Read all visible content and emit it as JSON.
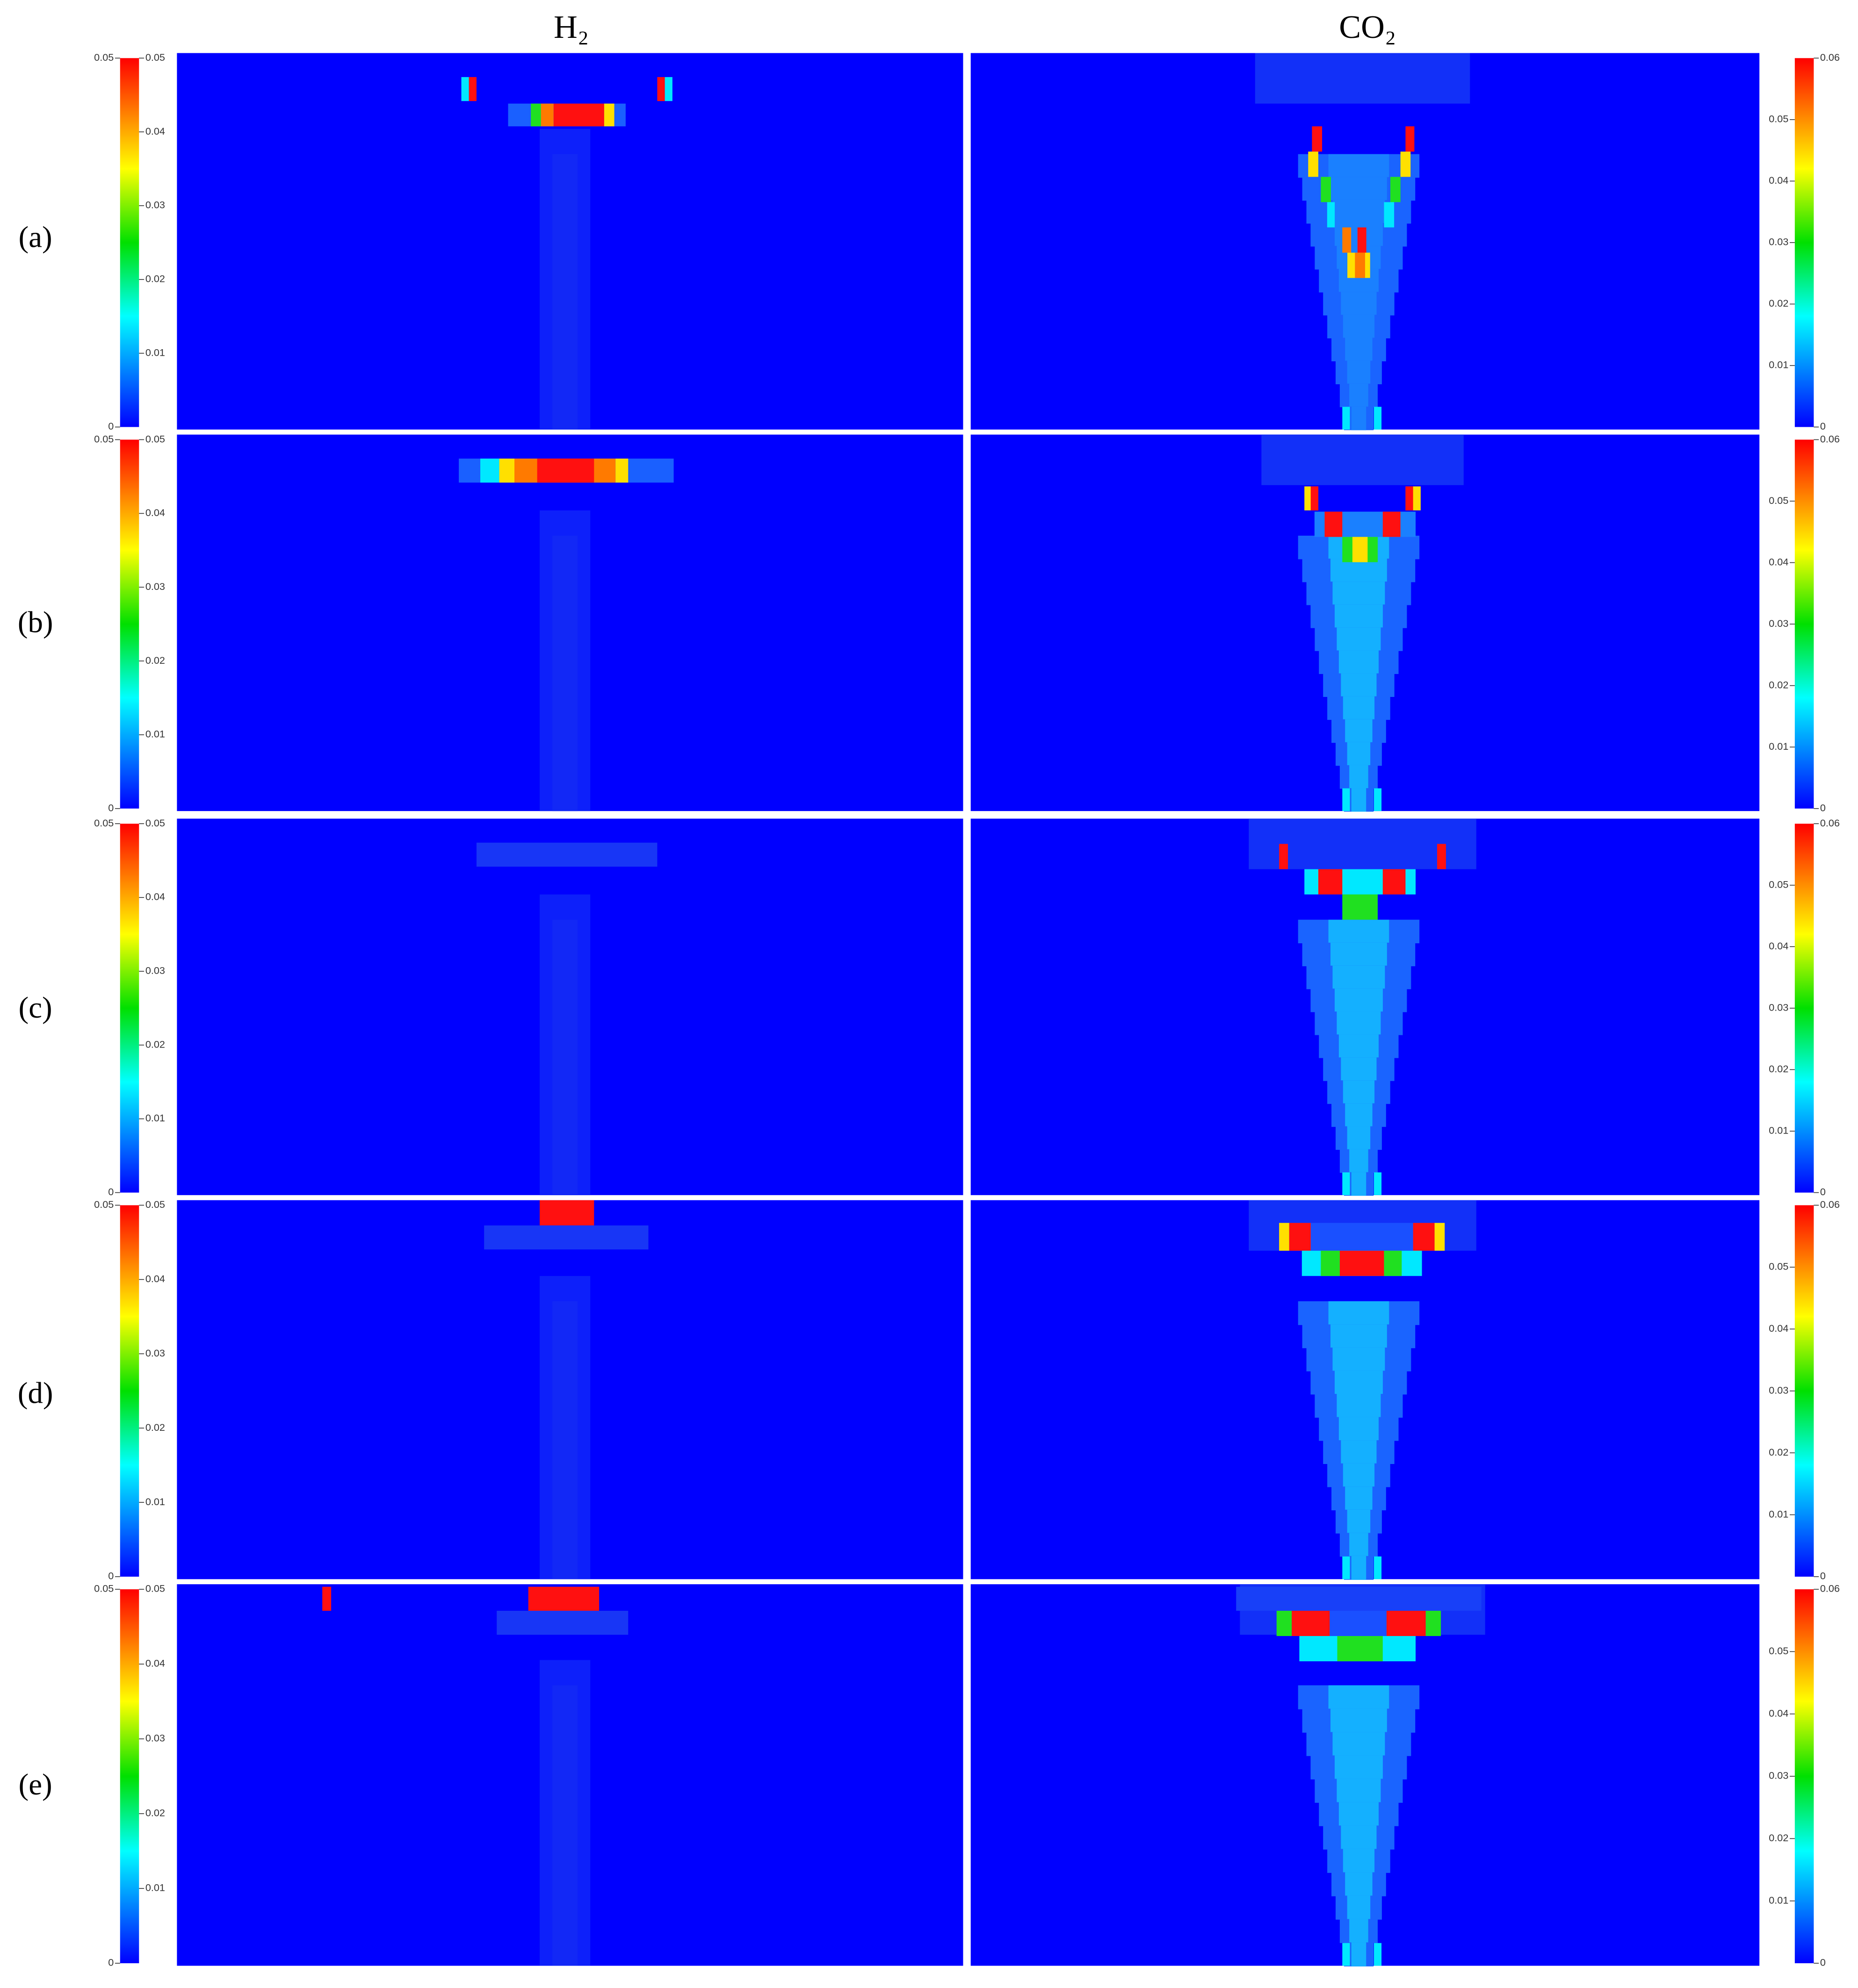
{
  "column_titles": [
    "H₂",
    "CO₂"
  ],
  "row_labels": [
    "(a)",
    "(b)",
    "(c)",
    "(d)",
    "(e)"
  ],
  "colorbars": [
    {
      "range": [
        0,
        0.05
      ],
      "ticks": [
        0.01,
        0.02,
        0.03,
        0.04,
        0.05
      ]
    },
    {
      "range": [
        0,
        0.06
      ],
      "ticks": [
        0.01,
        0.02,
        0.03,
        0.04,
        0.05
      ]
    }
  ]
}
